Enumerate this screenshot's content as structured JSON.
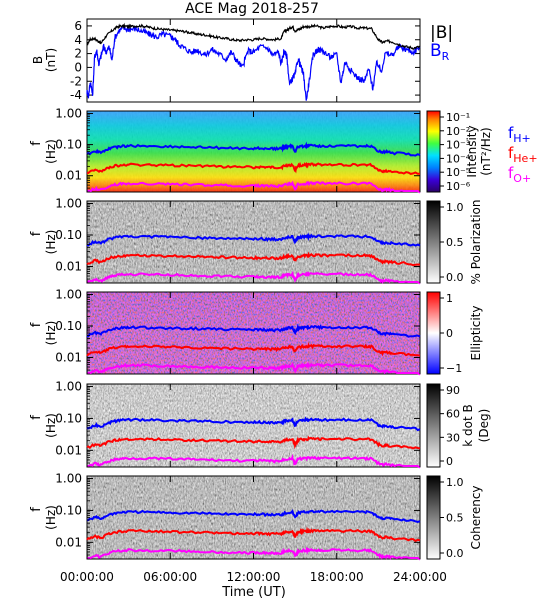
{
  "title": "ACE Mag 2018-257",
  "colors": {
    "b_total": "#000000",
    "b_r": "#0000ff",
    "f_h": "#0000ff",
    "f_he": "#ff0000",
    "f_o": "#ff00ff"
  },
  "chart_data": [
    {
      "type": "line",
      "panel": "magnetic-field",
      "ylabel": "B",
      "yunit": "(nT)",
      "yticks": [
        "6",
        "4",
        "2",
        "0",
        "-2",
        "-4"
      ],
      "ylim": [
        -5,
        7
      ],
      "xlim": [
        0,
        24
      ],
      "legend": [
        "|B|",
        "B_R"
      ],
      "legend_labels": {
        "b_total": "|B|",
        "b_r_main": "B",
        "b_r_sub": "R"
      },
      "series": [
        {
          "name": "|B|",
          "color_key": "b_total",
          "x": [
            0,
            0.2,
            0.5,
            0.8,
            1.0,
            1.4,
            1.8,
            2.2,
            2.6,
            3.0,
            3.5,
            4,
            4.5,
            5,
            5.5,
            6,
            6.5,
            7,
            7.5,
            8,
            8.5,
            9,
            9.5,
            10,
            10.5,
            11,
            11.5,
            12,
            12.5,
            13,
            13.5,
            14,
            14.2,
            14.5,
            14.8,
            15,
            15.3,
            15.6,
            16,
            16.5,
            17,
            17.5,
            18,
            18.5,
            19,
            19.5,
            20,
            20.5,
            21,
            21.3,
            21.6,
            22,
            22.5,
            23,
            23.5,
            24
          ],
          "y": [
            3.2,
            4.0,
            4.2,
            3.8,
            3.5,
            4.6,
            5.3,
            5.9,
            6.0,
            5.9,
            6.0,
            6.0,
            5.8,
            5.6,
            5.5,
            5.4,
            5.3,
            5.2,
            5.0,
            4.8,
            4.7,
            4.5,
            4.3,
            4.2,
            4.0,
            3.9,
            4.0,
            4.0,
            4.2,
            4.1,
            4.0,
            4.2,
            5.2,
            5.5,
            5.9,
            5.3,
            5.5,
            5.9,
            5.9,
            6.0,
            5.7,
            5.9,
            6.0,
            5.8,
            5.9,
            5.7,
            5.7,
            5.6,
            4.0,
            3.6,
            3.8,
            3.7,
            3.3,
            3.0,
            2.8,
            3.0
          ]
        },
        {
          "name": "B_R",
          "color_key": "b_r",
          "x": [
            0,
            0.1,
            0.25,
            0.4,
            0.55,
            0.7,
            0.85,
            1.0,
            1.2,
            1.4,
            1.6,
            1.8,
            2.0,
            2.3,
            2.6,
            3.0,
            3.5,
            4,
            4.5,
            5,
            5.5,
            6,
            6.3,
            6.6,
            7,
            7.5,
            8,
            8.5,
            9,
            9.5,
            10,
            10.4,
            10.8,
            11.2,
            11.6,
            12,
            12.5,
            13,
            13.4,
            13.8,
            14.0,
            14.2,
            14.4,
            14.6,
            14.8,
            15.0,
            15.2,
            15.4,
            15.6,
            15.8,
            16.0,
            16.3,
            16.6,
            17,
            17.5,
            18,
            18.3,
            18.6,
            19,
            19.5,
            20,
            20.3,
            20.6,
            20.9,
            21.2,
            21.5,
            22,
            22.5,
            23,
            23.5,
            24
          ],
          "y": [
            -3.5,
            -4.2,
            -2.0,
            -4.0,
            1.5,
            2.5,
            0.5,
            1.6,
            3.0,
            2.2,
            3.0,
            1.0,
            4.3,
            5.3,
            5.7,
            5.5,
            5.6,
            5.2,
            4.8,
            4.4,
            4.8,
            4.5,
            4.2,
            3.4,
            2.8,
            2.2,
            2.5,
            1.8,
            2.6,
            2.0,
            1.2,
            2.2,
            1.0,
            0.0,
            2.4,
            2.2,
            3.0,
            2.8,
            1.8,
            2.2,
            0.5,
            2.4,
            1.6,
            -2.5,
            -1.6,
            -1.0,
            1.2,
            0.2,
            -1.0,
            -4.8,
            -2.2,
            1.8,
            2.6,
            2.4,
            1.5,
            1.8,
            -2.2,
            0.8,
            -0.4,
            -1.5,
            -2.0,
            -0.2,
            -3.0,
            0.8,
            -0.6,
            2.0,
            1.8,
            3.0,
            2.6,
            2.2,
            3.0
          ]
        }
      ]
    },
    {
      "type": "heatmap",
      "panel": "intensity",
      "ylabel": "f",
      "yunit": "(Hz)",
      "yscale": "log",
      "ylim": [
        0.003,
        1.2
      ],
      "xlim": [
        0,
        24
      ],
      "yticks": [
        "1.00",
        "0.10",
        "0.01"
      ],
      "colorbar_label": "Intensity",
      "colorbar_unit": "(nT²/Hz)",
      "colorbar_ticks": [
        "10⁻¹",
        "10⁻²",
        "10⁻³",
        "10⁻⁴",
        "10⁻⁵",
        "10⁻⁶"
      ],
      "colormap": "rainbow",
      "legend_labels": {
        "f_h_main": "f",
        "f_h_sub": "H+",
        "f_he_main": "f",
        "f_he_sub": "He+",
        "f_o_main": "f",
        "f_o_sub": "O+"
      }
    },
    {
      "type": "heatmap",
      "panel": "polarization",
      "ylabel": "f",
      "yunit": "(Hz)",
      "yscale": "log",
      "ylim": [
        0.003,
        1.2
      ],
      "yticks": [
        "1.00",
        "0.10",
        "0.01"
      ],
      "colorbar_label": "% Polarization",
      "colorbar_ticks": [
        "1.0",
        "0.5",
        "0.0"
      ],
      "colormap": "grayscale"
    },
    {
      "type": "heatmap",
      "panel": "ellipticity",
      "ylabel": "f",
      "yunit": "(Hz)",
      "yscale": "log",
      "ylim": [
        0.003,
        1.2
      ],
      "yticks": [
        "1.00",
        "0.10",
        "0.01"
      ],
      "colorbar_label": "Ellipticity",
      "colorbar_ticks": [
        "1",
        "0",
        "−1"
      ],
      "colormap": "blue-white-red"
    },
    {
      "type": "heatmap",
      "panel": "k-dot-b",
      "ylabel": "f",
      "yunit": "(Hz)",
      "yscale": "log",
      "ylim": [
        0.003,
        1.2
      ],
      "yticks": [
        "1.00",
        "0.10",
        "0.01"
      ],
      "colorbar_label": "k dot B",
      "colorbar_unit": "(Deg)",
      "colorbar_ticks": [
        "90",
        "60",
        "30",
        "0"
      ],
      "colormap": "grayscale"
    },
    {
      "type": "heatmap",
      "panel": "coherency",
      "ylabel": "f",
      "yunit": "(Hz)",
      "yscale": "log",
      "ylim": [
        0.003,
        1.2
      ],
      "yticks": [
        "1.00",
        "0.10",
        "0.01"
      ],
      "colorbar_label": "Coherency",
      "colorbar_ticks": [
        "1.0",
        "0.5",
        "0.0"
      ],
      "colormap": "grayscale"
    }
  ],
  "gyrofrequency_lines": {
    "x": [
      0,
      0.6,
      1.0,
      1.5,
      2.0,
      2.5,
      3,
      4,
      5,
      6,
      7,
      8,
      9,
      10,
      11,
      12,
      12.5,
      13,
      13.5,
      14,
      14.2,
      14.5,
      14.8,
      15,
      15.2,
      15.5,
      15.8,
      16,
      16.5,
      17,
      18,
      19,
      20,
      20.5,
      21,
      21.3,
      21.6,
      22,
      23,
      24
    ],
    "f_h_plus": [
      0.048,
      0.062,
      0.055,
      0.072,
      0.082,
      0.088,
      0.09,
      0.09,
      0.088,
      0.086,
      0.084,
      0.082,
      0.08,
      0.078,
      0.076,
      0.075,
      0.076,
      0.074,
      0.073,
      0.074,
      0.082,
      0.086,
      0.09,
      0.06,
      0.084,
      0.088,
      0.09,
      0.091,
      0.092,
      0.09,
      0.091,
      0.09,
      0.089,
      0.088,
      0.062,
      0.056,
      0.058,
      0.054,
      0.05,
      0.046
    ]
  },
  "xaxis": {
    "label": "Time (UT)",
    "ticks": [
      "00:00:00",
      "06:00:00",
      "12:00:00",
      "18:00:00",
      "24:00:00"
    ]
  }
}
